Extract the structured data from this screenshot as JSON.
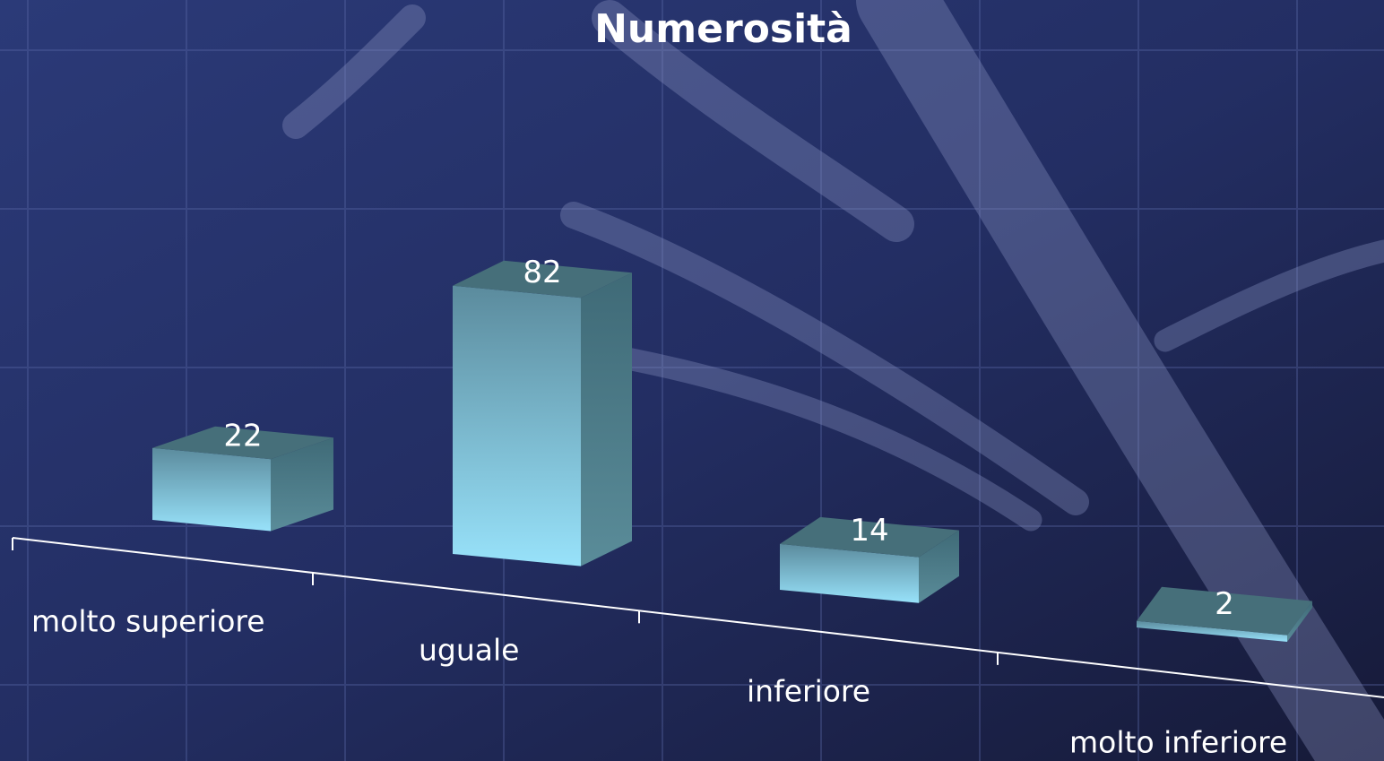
{
  "chart_data": {
    "type": "bar3d",
    "title": "Numerosità",
    "categories": [
      "molto superiore",
      "uguale",
      "inferiore",
      "molto inferiore"
    ],
    "values": [
      22,
      82,
      14,
      2
    ],
    "color": "#8fdcf5"
  }
}
